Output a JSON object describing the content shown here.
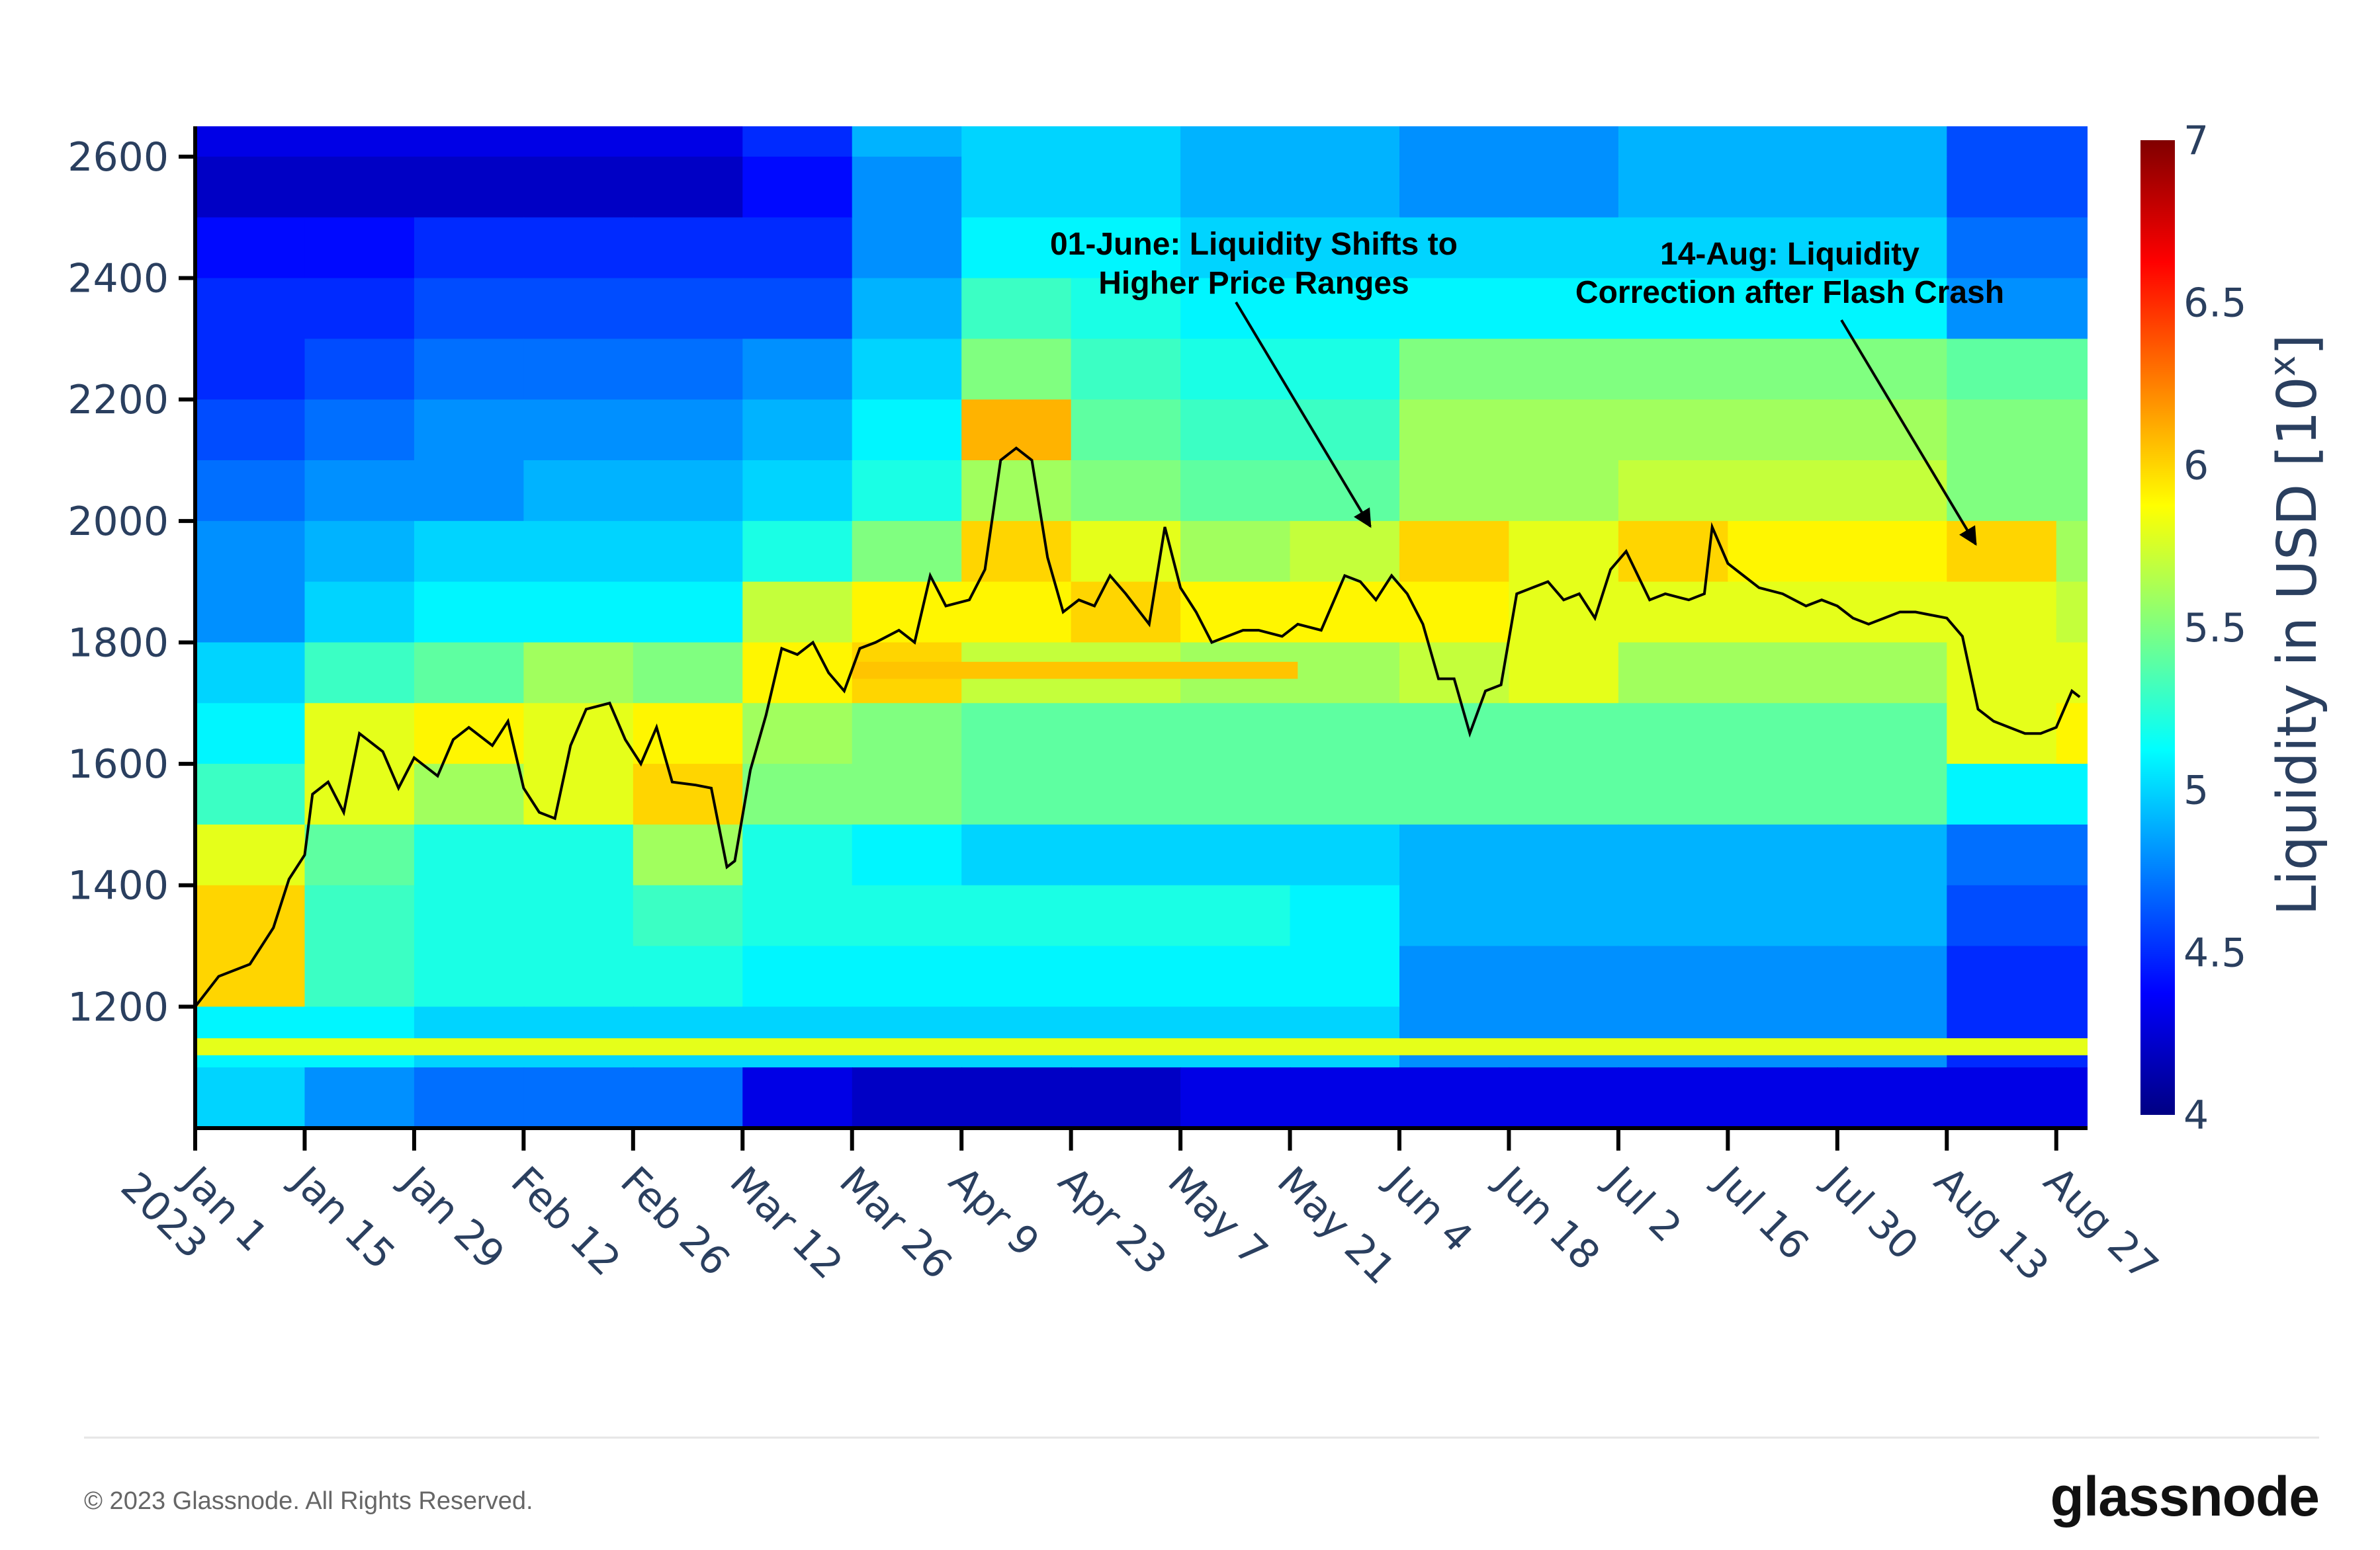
{
  "chart_data": {
    "type": "heatmap",
    "title": "",
    "xlabel": "",
    "ylabel": "",
    "colorbar": {
      "title": "Liquidity in USD [10",
      "title_sup": "x",
      "title_end": "]",
      "range": [
        4,
        7
      ],
      "ticks": [
        "4",
        "4.5",
        "5",
        "5.5",
        "6",
        "6.5",
        "7"
      ],
      "colorscale": "jet"
    },
    "xlim": [
      "2023-01-01",
      "2023-08-30"
    ],
    "ylim": [
      1000,
      2650
    ],
    "y_ticks": [
      "1200",
      "1400",
      "1600",
      "1800",
      "2000",
      "2200",
      "2400",
      "2600"
    ],
    "x_ticks": [
      {
        "date": "2023-01-01",
        "label": "Jan 1",
        "label2": "2023"
      },
      {
        "date": "2023-01-15",
        "label": "Jan 15"
      },
      {
        "date": "2023-01-29",
        "label": "Jan 29"
      },
      {
        "date": "2023-02-12",
        "label": "Feb 12"
      },
      {
        "date": "2023-02-26",
        "label": "Feb 26"
      },
      {
        "date": "2023-03-12",
        "label": "Mar 12"
      },
      {
        "date": "2023-03-26",
        "label": "Mar 26"
      },
      {
        "date": "2023-04-09",
        "label": "Apr 9"
      },
      {
        "date": "2023-04-23",
        "label": "Apr 23"
      },
      {
        "date": "2023-05-07",
        "label": "May 7"
      },
      {
        "date": "2023-05-21",
        "label": "May 21"
      },
      {
        "date": "2023-06-04",
        "label": "Jun 4"
      },
      {
        "date": "2023-06-18",
        "label": "Jun 18"
      },
      {
        "date": "2023-07-02",
        "label": "Jul 2"
      },
      {
        "date": "2023-07-16",
        "label": "Jul 16"
      },
      {
        "date": "2023-07-30",
        "label": "Jul 30"
      },
      {
        "date": "2023-08-13",
        "label": "Aug 13"
      },
      {
        "date": "2023-08-27",
        "label": "Aug 27"
      }
    ],
    "heatmap": {
      "column_starts": [
        "2023-01-01",
        "2023-01-15",
        "2023-01-29",
        "2023-02-12",
        "2023-02-26",
        "2023-03-12",
        "2023-03-26",
        "2023-04-09",
        "2023-04-23",
        "2023-05-07",
        "2023-05-21",
        "2023-0604",
        "2023-06-18",
        "2023-07-02",
        "2023-07-16",
        "2023-07-30",
        "2023-08-13",
        "2023-08-27"
      ],
      "price_bins": [
        2600,
        2500,
        2400,
        2300,
        2200,
        2100,
        2000,
        1900,
        1800,
        1700,
        1600,
        1500,
        1400,
        1300,
        1200,
        1100,
        1000
      ],
      "bin_size": 100,
      "values": [
        [
          4.3,
          4.3,
          4.3,
          4.3,
          4.3,
          4.5,
          4.9,
          5.0,
          5.0,
          4.9,
          4.9,
          4.8,
          4.8,
          4.9,
          4.9,
          4.9,
          4.6,
          4.6
        ],
        [
          4.2,
          4.2,
          4.2,
          4.2,
          4.2,
          4.4,
          4.8,
          5.0,
          5.0,
          4.9,
          4.9,
          4.8,
          4.8,
          4.9,
          4.9,
          4.9,
          4.6,
          4.6
        ],
        [
          4.4,
          4.4,
          4.5,
          4.5,
          4.5,
          4.5,
          4.8,
          5.1,
          5.1,
          5.0,
          5.0,
          5.0,
          5.0,
          5.0,
          5.0,
          5.0,
          4.7,
          4.7
        ],
        [
          4.5,
          4.5,
          4.6,
          4.6,
          4.6,
          4.6,
          4.9,
          5.3,
          5.2,
          5.1,
          5.1,
          5.1,
          5.1,
          5.1,
          5.1,
          5.1,
          4.8,
          4.8
        ],
        [
          4.5,
          4.6,
          4.7,
          4.7,
          4.7,
          4.8,
          5.0,
          5.5,
          5.3,
          5.2,
          5.2,
          5.5,
          5.5,
          5.5,
          5.5,
          5.5,
          5.4,
          5.4
        ],
        [
          4.6,
          4.7,
          4.8,
          4.8,
          4.8,
          4.9,
          5.1,
          6.1,
          5.4,
          5.3,
          5.3,
          5.6,
          5.6,
          5.6,
          5.6,
          5.6,
          5.5,
          5.5
        ],
        [
          4.7,
          4.8,
          4.8,
          4.9,
          4.9,
          5.0,
          5.2,
          5.6,
          5.5,
          5.4,
          5.4,
          5.6,
          5.6,
          5.7,
          5.7,
          5.7,
          5.5,
          5.5
        ],
        [
          4.8,
          4.9,
          5.0,
          5.0,
          5.0,
          5.2,
          5.5,
          6.0,
          5.8,
          5.6,
          5.7,
          6.0,
          5.8,
          6.0,
          5.9,
          5.9,
          6.0,
          5.6
        ],
        [
          4.8,
          5.0,
          5.1,
          5.1,
          5.1,
          5.7,
          5.9,
          5.9,
          6.0,
          5.9,
          5.9,
          5.9,
          5.8,
          5.8,
          5.8,
          5.8,
          5.8,
          5.7
        ],
        [
          5.0,
          5.3,
          5.4,
          5.6,
          5.5,
          5.9,
          6.0,
          5.7,
          5.7,
          5.6,
          5.6,
          5.7,
          5.8,
          5.6,
          5.6,
          5.6,
          5.8,
          5.8
        ],
        [
          5.1,
          5.8,
          5.9,
          5.8,
          5.9,
          5.6,
          5.5,
          5.4,
          5.4,
          5.4,
          5.4,
          5.4,
          5.4,
          5.4,
          5.4,
          5.4,
          5.8,
          5.9
        ],
        [
          5.3,
          5.8,
          5.6,
          5.8,
          6.0,
          5.5,
          5.5,
          5.4,
          5.4,
          5.4,
          5.4,
          5.4,
          5.4,
          5.4,
          5.4,
          5.4,
          5.1,
          5.1
        ],
        [
          5.8,
          5.4,
          5.2,
          5.2,
          5.6,
          5.2,
          5.1,
          5.0,
          5.0,
          5.0,
          5.0,
          4.9,
          4.9,
          4.9,
          4.9,
          4.9,
          4.7,
          4.7
        ],
        [
          6.0,
          5.3,
          5.2,
          5.2,
          5.3,
          5.2,
          5.2,
          5.2,
          5.2,
          5.2,
          5.1,
          4.9,
          4.9,
          4.9,
          4.9,
          4.9,
          4.6,
          4.6
        ],
        [
          6.0,
          5.3,
          5.2,
          5.2,
          5.2,
          5.1,
          5.1,
          5.1,
          5.1,
          5.1,
          5.1,
          4.8,
          4.8,
          4.8,
          4.8,
          4.8,
          4.5,
          4.5
        ],
        [
          5.1,
          5.1,
          5.0,
          5.0,
          5.0,
          5.0,
          5.0,
          5.0,
          5.0,
          5.0,
          5.0,
          4.8,
          4.8,
          4.8,
          4.8,
          4.8,
          4.5,
          4.5
        ],
        [
          5.0,
          4.8,
          4.7,
          4.7,
          4.7,
          4.3,
          4.2,
          4.2,
          4.2,
          4.3,
          4.3,
          4.3,
          4.3,
          4.3,
          4.3,
          4.3,
          4.3,
          4.3
        ]
      ],
      "bands": [
        {
          "start": "2023-01-01",
          "end": "2023-08-30",
          "price_low": 1120,
          "price_high": 1148,
          "value": 5.8
        },
        {
          "start": "2023-03-26",
          "end": "2023-05-21",
          "price_low": 1740,
          "price_high": 1768,
          "value": 6.05
        }
      ]
    },
    "series": [
      {
        "type": "line",
        "color": "#000000",
        "points": [
          [
            "2023-01-01",
            1200
          ],
          [
            "2023-01-04",
            1250
          ],
          [
            "2023-01-08",
            1270
          ],
          [
            "2023-01-11",
            1330
          ],
          [
            "2023-01-13",
            1410
          ],
          [
            "2023-01-15",
            1450
          ],
          [
            "2023-01-16",
            1550
          ],
          [
            "2023-01-18",
            1570
          ],
          [
            "2023-01-20",
            1520
          ],
          [
            "2023-01-22",
            1650
          ],
          [
            "2023-01-25",
            1620
          ],
          [
            "2023-01-27",
            1560
          ],
          [
            "2023-01-29",
            1610
          ],
          [
            "2023-02-01",
            1580
          ],
          [
            "2023-02-03",
            1640
          ],
          [
            "2023-02-05",
            1660
          ],
          [
            "2023-02-08",
            1630
          ],
          [
            "2023-02-10",
            1670
          ],
          [
            "2023-02-12",
            1560
          ],
          [
            "2023-02-14",
            1520
          ],
          [
            "2023-02-16",
            1510
          ],
          [
            "2023-02-18",
            1630
          ],
          [
            "2023-02-20",
            1690
          ],
          [
            "2023-02-23",
            1700
          ],
          [
            "2023-02-25",
            1640
          ],
          [
            "2023-02-27",
            1600
          ],
          [
            "2023-03-01",
            1660
          ],
          [
            "2023-03-03",
            1570
          ],
          [
            "2023-03-06",
            1565
          ],
          [
            "2023-03-08",
            1560
          ],
          [
            "2023-03-10",
            1430
          ],
          [
            "2023-03-11",
            1440
          ],
          [
            "2023-03-13",
            1590
          ],
          [
            "2023-03-15",
            1680
          ],
          [
            "2023-03-17",
            1790
          ],
          [
            "2023-03-19",
            1780
          ],
          [
            "2023-03-21",
            1800
          ],
          [
            "2023-03-23",
            1750
          ],
          [
            "2023-03-25",
            1720
          ],
          [
            "2023-03-27",
            1790
          ],
          [
            "2023-03-29",
            1800
          ],
          [
            "2023-04-01",
            1820
          ],
          [
            "2023-04-03",
            1800
          ],
          [
            "2023-04-05",
            1910
          ],
          [
            "2023-04-07",
            1860
          ],
          [
            "2023-04-10",
            1870
          ],
          [
            "2023-04-12",
            1920
          ],
          [
            "2023-04-14",
            2100
          ],
          [
            "2023-04-16",
            2120
          ],
          [
            "2023-04-18",
            2100
          ],
          [
            "2023-04-20",
            1940
          ],
          [
            "2023-04-22",
            1850
          ],
          [
            "2023-04-24",
            1870
          ],
          [
            "2023-04-26",
            1860
          ],
          [
            "2023-04-28",
            1910
          ],
          [
            "2023-04-30",
            1880
          ],
          [
            "2023-05-03",
            1830
          ],
          [
            "2023-05-05",
            1990
          ],
          [
            "2023-05-07",
            1890
          ],
          [
            "2023-05-09",
            1850
          ],
          [
            "2023-05-11",
            1800
          ],
          [
            "2023-05-13",
            1810
          ],
          [
            "2023-05-15",
            1820
          ],
          [
            "2023-05-17",
            1820
          ],
          [
            "2023-05-20",
            1810
          ],
          [
            "2023-05-22",
            1830
          ],
          [
            "2023-05-25",
            1820
          ],
          [
            "2023-05-28",
            1910
          ],
          [
            "2023-05-30",
            1900
          ],
          [
            "2023-06-01",
            1870
          ],
          [
            "2023-06-03",
            1910
          ],
          [
            "2023-06-05",
            1880
          ],
          [
            "2023-06-07",
            1830
          ],
          [
            "2023-06-09",
            1740
          ],
          [
            "2023-06-11",
            1740
          ],
          [
            "2023-06-13",
            1650
          ],
          [
            "2023-06-15",
            1720
          ],
          [
            "2023-06-17",
            1730
          ],
          [
            "2023-06-19",
            1880
          ],
          [
            "2023-06-21",
            1890
          ],
          [
            "2023-06-23",
            1900
          ],
          [
            "2023-06-25",
            1870
          ],
          [
            "2023-06-27",
            1880
          ],
          [
            "2023-06-29",
            1840
          ],
          [
            "2023-07-01",
            1920
          ],
          [
            "2023-07-03",
            1950
          ],
          [
            "2023-07-06",
            1870
          ],
          [
            "2023-07-08",
            1880
          ],
          [
            "2023-07-11",
            1870
          ],
          [
            "2023-07-13",
            1880
          ],
          [
            "2023-07-14",
            1990
          ],
          [
            "2023-07-16",
            1930
          ],
          [
            "2023-07-18",
            1910
          ],
          [
            "2023-07-20",
            1890
          ],
          [
            "2023-07-23",
            1880
          ],
          [
            "2023-07-26",
            1860
          ],
          [
            "2023-07-28",
            1870
          ],
          [
            "2023-07-30",
            1860
          ],
          [
            "2023-08-01",
            1840
          ],
          [
            "2023-08-03",
            1830
          ],
          [
            "2023-08-05",
            1840
          ],
          [
            "2023-08-07",
            1850
          ],
          [
            "2023-08-09",
            1850
          ],
          [
            "2023-08-11",
            1845
          ],
          [
            "2023-08-13",
            1840
          ],
          [
            "2023-08-15",
            1810
          ],
          [
            "2023-08-17",
            1690
          ],
          [
            "2023-08-19",
            1670
          ],
          [
            "2023-08-21",
            1660
          ],
          [
            "2023-08-23",
            1650
          ],
          [
            "2023-08-25",
            1650
          ],
          [
            "2023-08-27",
            1660
          ],
          [
            "2023-08-29",
            1720
          ],
          [
            "2023-08-30",
            1710
          ]
        ]
      }
    ],
    "annotations": [
      {
        "line1": "01-June: Liquidity Shifts to",
        "line2": "Higher Price Ranges",
        "arrow_to_date": "2023-06-01",
        "arrow_to_price": 1960
      },
      {
        "line1": "14-Aug: Liquidity",
        "line2": "Correction after Flash Crash",
        "arrow_to_date": "2023-08-14",
        "arrow_to_price": 1950
      }
    ]
  },
  "footer": {
    "copyright": "© 2023 Glassnode. All Rights Reserved.",
    "logo": "glassnode"
  }
}
